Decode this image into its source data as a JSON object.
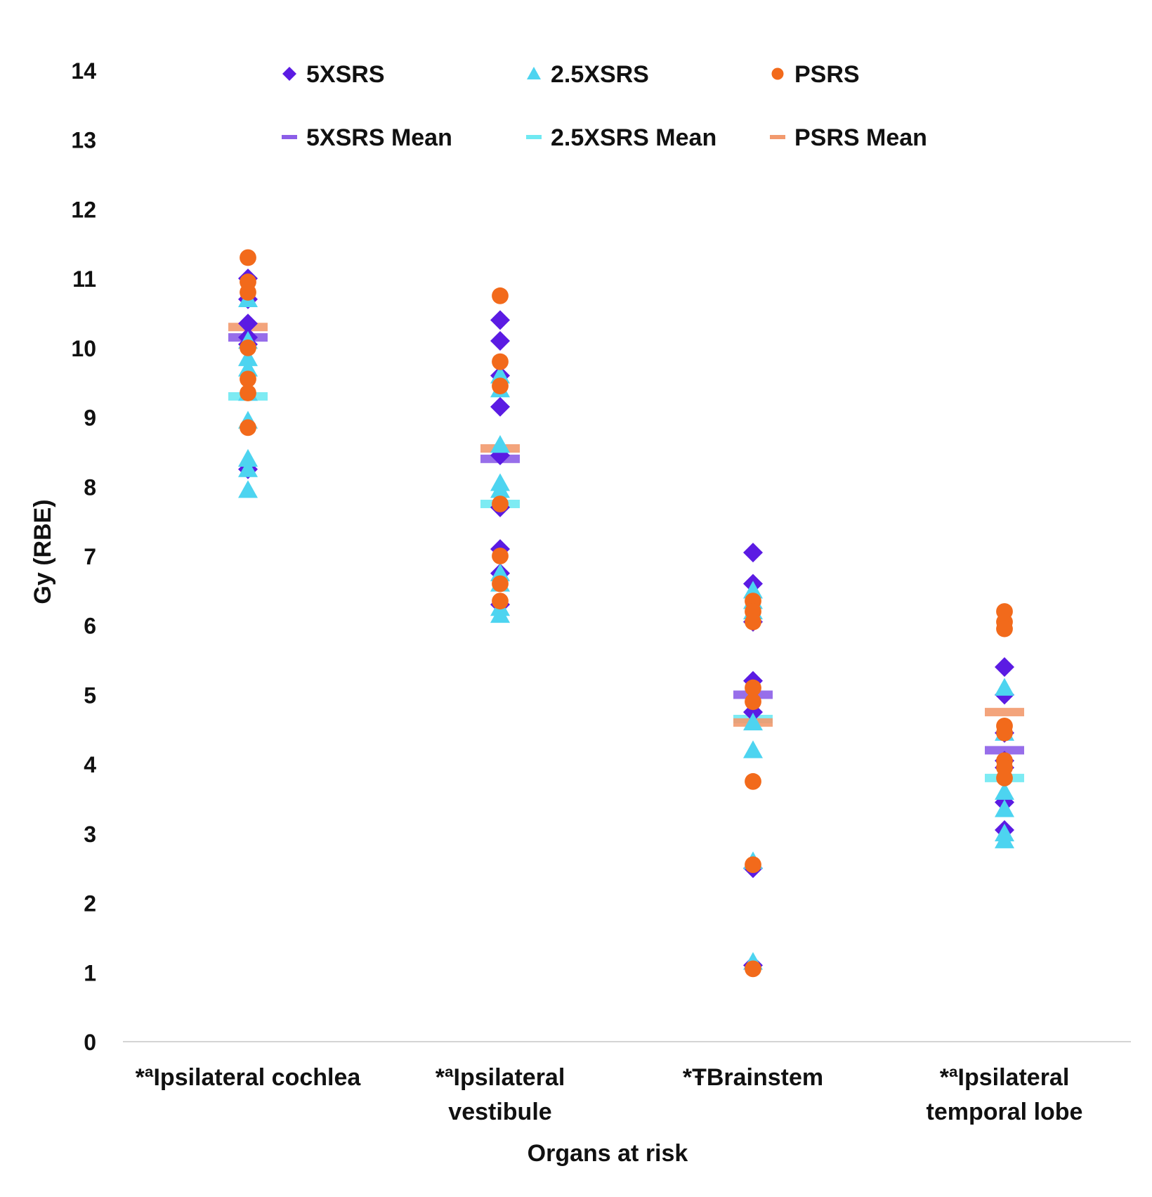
{
  "chart_data": {
    "type": "scatter",
    "xlabel": "Organs at risk",
    "ylabel": "Gy (RBE)",
    "ylim": [
      0,
      14
    ],
    "yticks": [
      0,
      1,
      2,
      3,
      4,
      5,
      6,
      7,
      8,
      9,
      10,
      11,
      12,
      13,
      14
    ],
    "grid": false,
    "legend_position": "top",
    "categories": [
      [
        "*ªIpsilateral cochlea"
      ],
      [
        "*ªIpsilateral",
        "vestibule"
      ],
      [
        "*ŦBrainstem"
      ],
      [
        "*ªIpsilateral",
        "temporal lobe"
      ]
    ],
    "series": [
      {
        "name": "5XSRS",
        "marker": "diamond",
        "color": "#5b1be3",
        "values": [
          [
            11.0,
            10.7,
            10.35,
            10.15,
            10.05,
            8.25
          ],
          [
            10.4,
            10.1,
            9.6,
            9.15,
            8.45,
            7.7,
            7.1,
            6.75,
            6.3
          ],
          [
            7.05,
            6.6,
            6.05,
            5.2,
            4.75,
            2.5,
            1.1
          ],
          [
            5.4,
            5.0,
            4.45,
            4.05,
            3.95,
            3.45,
            3.05
          ]
        ]
      },
      {
        "name": "2.5XSRS",
        "marker": "triangle",
        "color": "#4dd4f0",
        "values": [
          [
            10.7,
            10.1,
            9.85,
            9.7,
            9.35,
            8.95,
            8.4,
            8.25,
            7.95
          ],
          [
            9.6,
            9.4,
            8.6,
            8.05,
            7.95,
            6.75,
            6.6,
            6.25,
            6.15
          ],
          [
            6.5,
            6.35,
            6.2,
            4.6,
            4.2,
            2.6,
            1.15
          ],
          [
            5.1,
            4.45,
            3.6,
            3.35,
            3.0,
            2.9
          ]
        ]
      },
      {
        "name": "PSRS",
        "marker": "circle",
        "color": "#f26a1b",
        "values": [
          [
            11.3,
            10.95,
            10.8,
            10.0,
            9.55,
            9.35,
            8.85
          ],
          [
            10.75,
            9.8,
            9.45,
            7.75,
            7.0,
            6.6,
            6.35
          ],
          [
            6.35,
            6.2,
            6.05,
            5.1,
            4.9,
            3.75,
            2.55,
            1.05
          ],
          [
            6.2,
            6.05,
            5.95,
            4.55,
            4.45,
            4.05,
            3.95,
            3.8
          ]
        ]
      }
    ],
    "means": [
      {
        "name": "5XSRS Mean",
        "color": "#8c5ee8",
        "values": [
          10.15,
          8.4,
          5.0,
          4.2
        ]
      },
      {
        "name": "2.5XSRS Mean",
        "color": "#6fe9f2",
        "values": [
          9.3,
          7.75,
          4.65,
          3.8
        ]
      },
      {
        "name": "PSRS Mean",
        "color": "#f29a6e",
        "values": [
          10.3,
          8.55,
          4.6,
          4.75
        ]
      }
    ]
  }
}
